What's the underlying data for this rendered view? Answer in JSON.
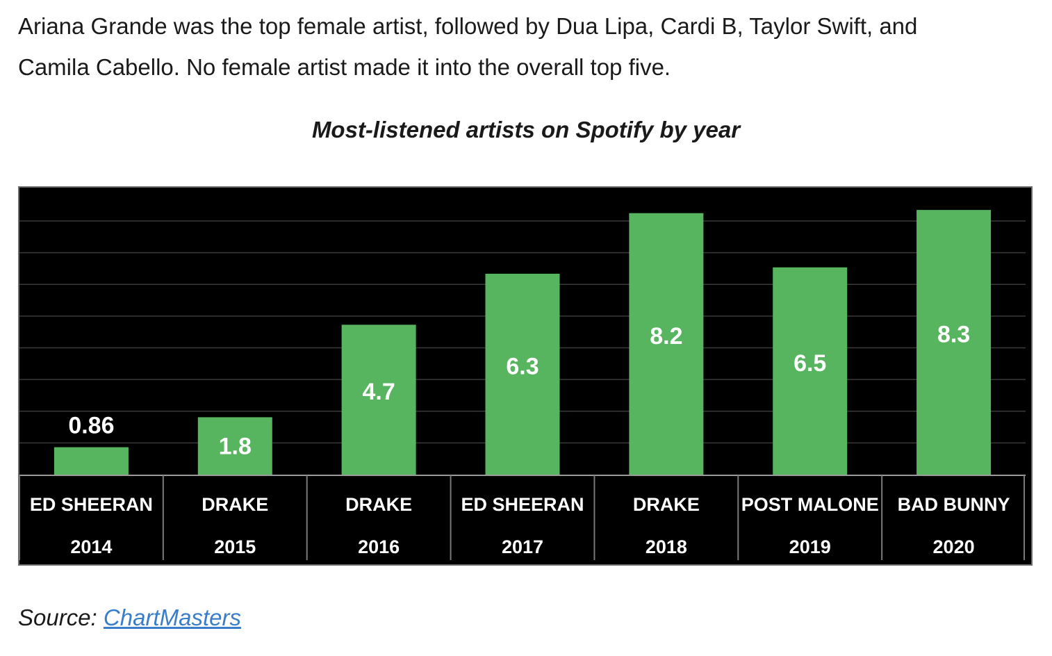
{
  "article": {
    "intro_line1": "Ariana Grande was the top female artist, followed by Dua Lipa, Cardi B, Taylor Swift, and",
    "intro_line2": "Camila Cabello. No female artist made it into the overall top five."
  },
  "source": {
    "label": "Source:",
    "link_text": "ChartMasters"
  },
  "colors": {
    "bar": "#57b45f",
    "background": "#000000",
    "gridline": "#3a3a3a",
    "text": "#ffffff",
    "link": "#3a7dc9"
  },
  "chart_data": {
    "type": "bar",
    "title": "Most-listened artists on Spotify by year",
    "categories": [
      "ED SHEERAN",
      "DRAKE",
      "DRAKE",
      "ED SHEERAN",
      "DRAKE",
      "POST MALONE",
      "BAD BUNNY"
    ],
    "years": [
      "2014",
      "2015",
      "2016",
      "2017",
      "2018",
      "2019",
      "2020"
    ],
    "values": [
      0.86,
      1.8,
      4.7,
      6.3,
      8.2,
      6.5,
      8.3
    ],
    "value_labels": [
      "0.86",
      "1.8",
      "4.7",
      "6.3",
      "8.2",
      "6.5",
      "8.3"
    ],
    "ylim": [
      0,
      9
    ],
    "grid": true,
    "legend": "none"
  }
}
